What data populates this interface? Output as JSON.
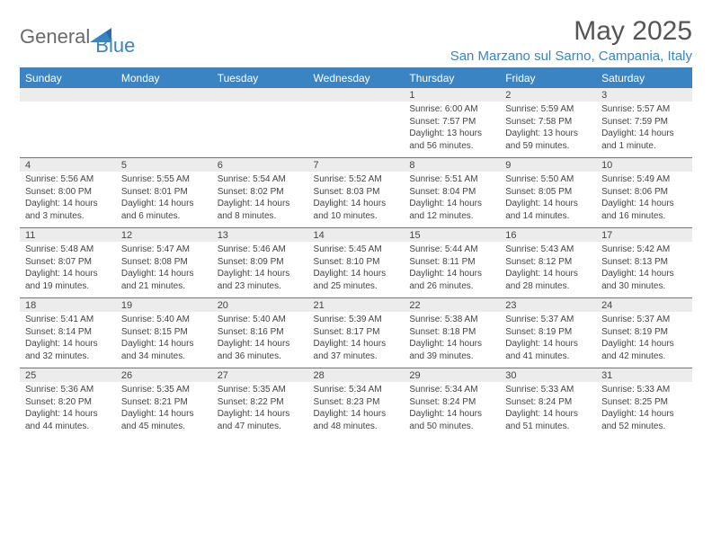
{
  "brand": {
    "part1": "General",
    "part2": "Blue"
  },
  "title": "May 2025",
  "location": "San Marzano sul Sarno, Campania, Italy",
  "colors": {
    "accent": "#3a84c4",
    "header_text": "#ffffff",
    "daynum_bg": "#ececec",
    "body_text": "#444444",
    "title_text": "#555555",
    "brand_gray": "#6a6a6a",
    "background": "#ffffff"
  },
  "daysOfWeek": [
    "Sunday",
    "Monday",
    "Tuesday",
    "Wednesday",
    "Thursday",
    "Friday",
    "Saturday"
  ],
  "weeks": [
    {
      "cells": [
        {
          "num": "",
          "lines": []
        },
        {
          "num": "",
          "lines": []
        },
        {
          "num": "",
          "lines": []
        },
        {
          "num": "",
          "lines": []
        },
        {
          "num": "1",
          "lines": [
            "Sunrise: 6:00 AM",
            "Sunset: 7:57 PM",
            "Daylight: 13 hours and 56 minutes."
          ]
        },
        {
          "num": "2",
          "lines": [
            "Sunrise: 5:59 AM",
            "Sunset: 7:58 PM",
            "Daylight: 13 hours and 59 minutes."
          ]
        },
        {
          "num": "3",
          "lines": [
            "Sunrise: 5:57 AM",
            "Sunset: 7:59 PM",
            "Daylight: 14 hours and 1 minute."
          ]
        }
      ]
    },
    {
      "cells": [
        {
          "num": "4",
          "lines": [
            "Sunrise: 5:56 AM",
            "Sunset: 8:00 PM",
            "Daylight: 14 hours and 3 minutes."
          ]
        },
        {
          "num": "5",
          "lines": [
            "Sunrise: 5:55 AM",
            "Sunset: 8:01 PM",
            "Daylight: 14 hours and 6 minutes."
          ]
        },
        {
          "num": "6",
          "lines": [
            "Sunrise: 5:54 AM",
            "Sunset: 8:02 PM",
            "Daylight: 14 hours and 8 minutes."
          ]
        },
        {
          "num": "7",
          "lines": [
            "Sunrise: 5:52 AM",
            "Sunset: 8:03 PM",
            "Daylight: 14 hours and 10 minutes."
          ]
        },
        {
          "num": "8",
          "lines": [
            "Sunrise: 5:51 AM",
            "Sunset: 8:04 PM",
            "Daylight: 14 hours and 12 minutes."
          ]
        },
        {
          "num": "9",
          "lines": [
            "Sunrise: 5:50 AM",
            "Sunset: 8:05 PM",
            "Daylight: 14 hours and 14 minutes."
          ]
        },
        {
          "num": "10",
          "lines": [
            "Sunrise: 5:49 AM",
            "Sunset: 8:06 PM",
            "Daylight: 14 hours and 16 minutes."
          ]
        }
      ]
    },
    {
      "cells": [
        {
          "num": "11",
          "lines": [
            "Sunrise: 5:48 AM",
            "Sunset: 8:07 PM",
            "Daylight: 14 hours and 19 minutes."
          ]
        },
        {
          "num": "12",
          "lines": [
            "Sunrise: 5:47 AM",
            "Sunset: 8:08 PM",
            "Daylight: 14 hours and 21 minutes."
          ]
        },
        {
          "num": "13",
          "lines": [
            "Sunrise: 5:46 AM",
            "Sunset: 8:09 PM",
            "Daylight: 14 hours and 23 minutes."
          ]
        },
        {
          "num": "14",
          "lines": [
            "Sunrise: 5:45 AM",
            "Sunset: 8:10 PM",
            "Daylight: 14 hours and 25 minutes."
          ]
        },
        {
          "num": "15",
          "lines": [
            "Sunrise: 5:44 AM",
            "Sunset: 8:11 PM",
            "Daylight: 14 hours and 26 minutes."
          ]
        },
        {
          "num": "16",
          "lines": [
            "Sunrise: 5:43 AM",
            "Sunset: 8:12 PM",
            "Daylight: 14 hours and 28 minutes."
          ]
        },
        {
          "num": "17",
          "lines": [
            "Sunrise: 5:42 AM",
            "Sunset: 8:13 PM",
            "Daylight: 14 hours and 30 minutes."
          ]
        }
      ]
    },
    {
      "cells": [
        {
          "num": "18",
          "lines": [
            "Sunrise: 5:41 AM",
            "Sunset: 8:14 PM",
            "Daylight: 14 hours and 32 minutes."
          ]
        },
        {
          "num": "19",
          "lines": [
            "Sunrise: 5:40 AM",
            "Sunset: 8:15 PM",
            "Daylight: 14 hours and 34 minutes."
          ]
        },
        {
          "num": "20",
          "lines": [
            "Sunrise: 5:40 AM",
            "Sunset: 8:16 PM",
            "Daylight: 14 hours and 36 minutes."
          ]
        },
        {
          "num": "21",
          "lines": [
            "Sunrise: 5:39 AM",
            "Sunset: 8:17 PM",
            "Daylight: 14 hours and 37 minutes."
          ]
        },
        {
          "num": "22",
          "lines": [
            "Sunrise: 5:38 AM",
            "Sunset: 8:18 PM",
            "Daylight: 14 hours and 39 minutes."
          ]
        },
        {
          "num": "23",
          "lines": [
            "Sunrise: 5:37 AM",
            "Sunset: 8:19 PM",
            "Daylight: 14 hours and 41 minutes."
          ]
        },
        {
          "num": "24",
          "lines": [
            "Sunrise: 5:37 AM",
            "Sunset: 8:19 PM",
            "Daylight: 14 hours and 42 minutes."
          ]
        }
      ]
    },
    {
      "cells": [
        {
          "num": "25",
          "lines": [
            "Sunrise: 5:36 AM",
            "Sunset: 8:20 PM",
            "Daylight: 14 hours and 44 minutes."
          ]
        },
        {
          "num": "26",
          "lines": [
            "Sunrise: 5:35 AM",
            "Sunset: 8:21 PM",
            "Daylight: 14 hours and 45 minutes."
          ]
        },
        {
          "num": "27",
          "lines": [
            "Sunrise: 5:35 AM",
            "Sunset: 8:22 PM",
            "Daylight: 14 hours and 47 minutes."
          ]
        },
        {
          "num": "28",
          "lines": [
            "Sunrise: 5:34 AM",
            "Sunset: 8:23 PM",
            "Daylight: 14 hours and 48 minutes."
          ]
        },
        {
          "num": "29",
          "lines": [
            "Sunrise: 5:34 AM",
            "Sunset: 8:24 PM",
            "Daylight: 14 hours and 50 minutes."
          ]
        },
        {
          "num": "30",
          "lines": [
            "Sunrise: 5:33 AM",
            "Sunset: 8:24 PM",
            "Daylight: 14 hours and 51 minutes."
          ]
        },
        {
          "num": "31",
          "lines": [
            "Sunrise: 5:33 AM",
            "Sunset: 8:25 PM",
            "Daylight: 14 hours and 52 minutes."
          ]
        }
      ]
    }
  ]
}
